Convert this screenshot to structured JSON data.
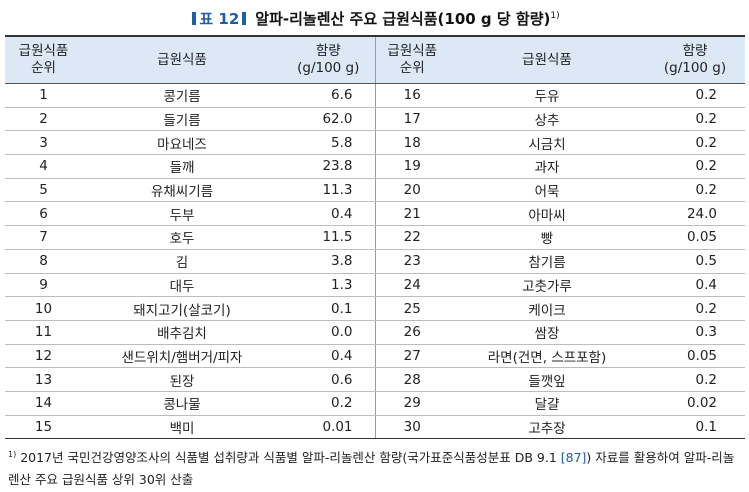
{
  "title": {
    "tag": "표 12",
    "main": "알파-리놀렌산 주요 급원식품(100 g 당 함량)",
    "footnote_mark": "1)"
  },
  "headers": {
    "rank": [
      "급원식품",
      "순위"
    ],
    "food": "급원식품",
    "amount": [
      "함량",
      "(g/100 g)"
    ]
  },
  "rows": [
    {
      "rank": "1",
      "food": "콩기름",
      "amount": "6.6",
      "rank2": "16",
      "food2": "두유",
      "amount2": "0.2"
    },
    {
      "rank": "2",
      "food": "들기름",
      "amount": "62.0",
      "rank2": "17",
      "food2": "상추",
      "amount2": "0.2"
    },
    {
      "rank": "3",
      "food": "마요네즈",
      "amount": "5.8",
      "rank2": "18",
      "food2": "시금치",
      "amount2": "0.2"
    },
    {
      "rank": "4",
      "food": "들깨",
      "amount": "23.8",
      "rank2": "19",
      "food2": "과자",
      "amount2": "0.2"
    },
    {
      "rank": "5",
      "food": "유채씨기름",
      "amount": "11.3",
      "rank2": "20",
      "food2": "어묵",
      "amount2": "0.2"
    },
    {
      "rank": "6",
      "food": "두부",
      "amount": "0.4",
      "rank2": "21",
      "food2": "아마씨",
      "amount2": "24.0"
    },
    {
      "rank": "7",
      "food": "호두",
      "amount": "11.5",
      "rank2": "22",
      "food2": "빵",
      "amount2": "0.05"
    },
    {
      "rank": "8",
      "food": "김",
      "amount": "3.8",
      "rank2": "23",
      "food2": "참기름",
      "amount2": "0.5"
    },
    {
      "rank": "9",
      "food": "대두",
      "amount": "1.3",
      "rank2": "24",
      "food2": "고춧가루",
      "amount2": "0.4"
    },
    {
      "rank": "10",
      "food": "돼지고기(살코기)",
      "amount": "0.1",
      "rank2": "25",
      "food2": "케이크",
      "amount2": "0.2"
    },
    {
      "rank": "11",
      "food": "배추김치",
      "amount": "0.0",
      "rank2": "26",
      "food2": "쌈장",
      "amount2": "0.3"
    },
    {
      "rank": "12",
      "food": "샌드위치/햄버거/피자",
      "amount": "0.4",
      "rank2": "27",
      "food2": "라면(건면, 스프포함)",
      "amount2": "0.05"
    },
    {
      "rank": "13",
      "food": "된장",
      "amount": "0.6",
      "rank2": "28",
      "food2": "들깻잎",
      "amount2": "0.2"
    },
    {
      "rank": "14",
      "food": "콩나물",
      "amount": "0.2",
      "rank2": "29",
      "food2": "달걀",
      "amount2": "0.02"
    },
    {
      "rank": "15",
      "food": "백미",
      "amount": "0.01",
      "rank2": "30",
      "food2": "고추장",
      "amount2": "0.1"
    }
  ],
  "footnote": {
    "mark": "1)",
    "text_before": "2017년 국민건강영양조사의 식품별 섭취량과 식품별 알파-리놀렌산 함량(국가표준식품성분표 DB 9.1 ",
    "ref": "[87]",
    "text_after": ") 자료를 활용하여 알파-리놀렌산 주요 급원식품 상위 30위 산출"
  },
  "colors": {
    "accent": "#1f5ea8",
    "header_bg": "#dce8f6"
  }
}
